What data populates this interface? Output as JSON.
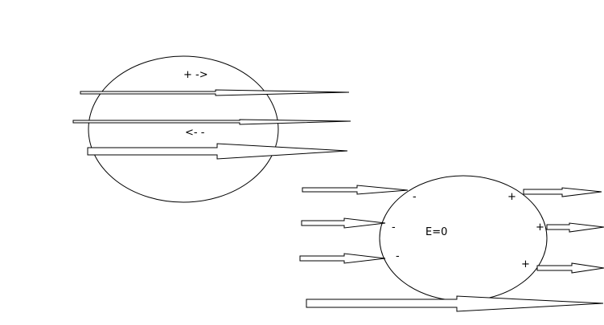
{
  "diagram": {
    "top_left": {
      "label_forward": "+ ->",
      "label_backward": "<- -"
    },
    "bottom_right": {
      "field_label": "E=0",
      "left_charges": [
        "-",
        "-",
        "-"
      ],
      "right_charges": [
        "+",
        "+",
        "+"
      ]
    }
  },
  "colors": {
    "stroke": "#000000",
    "background": "#ffffff"
  }
}
